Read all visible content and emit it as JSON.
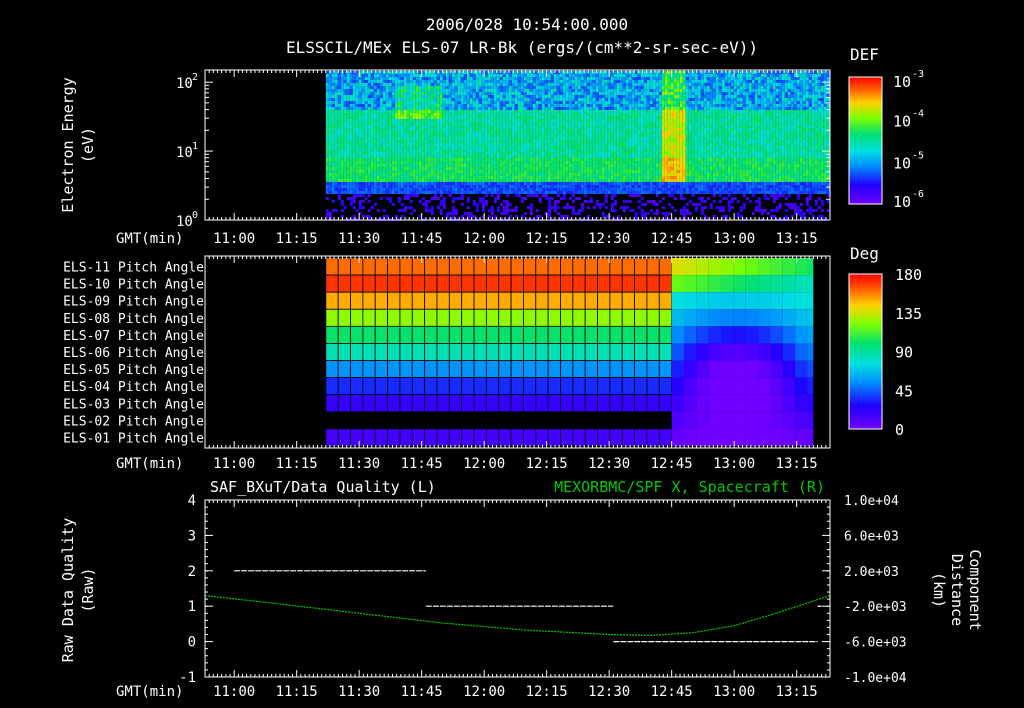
{
  "header": {
    "timestamp": "2006/028 10:54:00.000",
    "instrument": "ELSSCIL/MEx ELS-07 LR-Bk  (ergs/(cm**2-sr-sec-eV))"
  },
  "time_axis": {
    "label": "GMT(min)",
    "ticks": [
      "11:00",
      "11:15",
      "11:30",
      "11:45",
      "12:00",
      "12:15",
      "12:30",
      "12:45",
      "13:00",
      "13:15"
    ],
    "tick_minutes": [
      0,
      15,
      30,
      45,
      60,
      75,
      90,
      105,
      120,
      135
    ],
    "range_minutes": [
      -7,
      143
    ]
  },
  "chart_data": [
    {
      "type": "heatmap",
      "title": "ELSSCIL/MEx ELS-07 LR-Bk  (ergs/(cm**2-sr-sec-eV))",
      "ylabel": "Electron Energy (eV)",
      "ylabel_lines": [
        "Electron Energy",
        "(eV)"
      ],
      "y_scale": "log",
      "ylim": [
        1,
        150
      ],
      "y_ticks": [
        {
          "base": "10",
          "exp": "0"
        },
        {
          "base": "10",
          "exp": "1"
        },
        {
          "base": "10",
          "exp": "2"
        }
      ],
      "colorbar": {
        "label": "DEF",
        "ticks": [
          {
            "base": "10",
            "exp": "-3"
          },
          {
            "base": "10",
            "exp": "-4"
          },
          {
            "base": "10",
            "exp": "-5"
          },
          {
            "base": "10",
            "exp": "-6"
          }
        ]
      },
      "data_start_minute": 22
    },
    {
      "type": "heatmap",
      "ylabel": "Pitch Angle",
      "rows": [
        "ELS-11 Pitch Angle",
        "ELS-10 Pitch Angle",
        "ELS-09 Pitch Angle",
        "ELS-08 Pitch Angle",
        "ELS-07 Pitch Angle",
        "ELS-06 Pitch Angle",
        "ELS-05 Pitch Angle",
        "ELS-04 Pitch Angle",
        "ELS-03 Pitch Angle",
        "ELS-02 Pitch Angle",
        "ELS-01 Pitch Angle"
      ],
      "row_values_before_1242": [
        160,
        170,
        150,
        125,
        100,
        85,
        55,
        35,
        20,
        null,
        15
      ],
      "data_start_minute": 22,
      "colorbar": {
        "label": "Deg",
        "ticks": [
          "180",
          "135",
          "90",
          "45",
          "0"
        ],
        "range": [
          0,
          180
        ]
      }
    },
    {
      "type": "line",
      "title_left": "SAF_BXuT/Data Quality (L)",
      "title_right": "MEXORBMC/SPF X, Spacecraft (R)",
      "ylabel_left": "Raw Data Quality (Raw)",
      "ylabel_left_lines": [
        "Raw Data Quality",
        "(Raw)"
      ],
      "ylabel_right": "Component Distance (km)",
      "ylabel_right_lines": [
        "Component",
        "Distance",
        "(km)"
      ],
      "ylim_left": [
        -1,
        4
      ],
      "left_ticks": [
        "4",
        "3",
        "2",
        "1",
        "0",
        "-1"
      ],
      "ylim_right": [
        -10000,
        10000
      ],
      "right_ticks": [
        "1.0e+04",
        "6.0e+03",
        "2.0e+03",
        "-2.0e+03",
        "-6.0e+03",
        "-1.0e+04"
      ],
      "series": [
        {
          "color": "#00c800",
          "x_minutes": [
            -7,
            10,
            30,
            50,
            70,
            90,
            100,
            110,
            120,
            130,
            143
          ],
          "y_km": [
            -800,
            -1700,
            -2800,
            -3900,
            -4700,
            -5200,
            -5300,
            -5000,
            -4200,
            -2800,
            -800
          ]
        },
        {
          "color": "#ffffff",
          "segments": [
            {
              "x_minutes": [
                0,
                46
              ],
              "y": 2
            },
            {
              "x_minutes": [
                46,
                91
              ],
              "y": 1
            },
            {
              "x_minutes": [
                91,
                140
              ],
              "y": 0
            },
            {
              "x_minutes": [
                140,
                141
              ],
              "y": 1
            }
          ]
        }
      ]
    }
  ],
  "colors": {
    "background": "#000000",
    "foreground": "#ffffff",
    "trace": "#00c800"
  }
}
